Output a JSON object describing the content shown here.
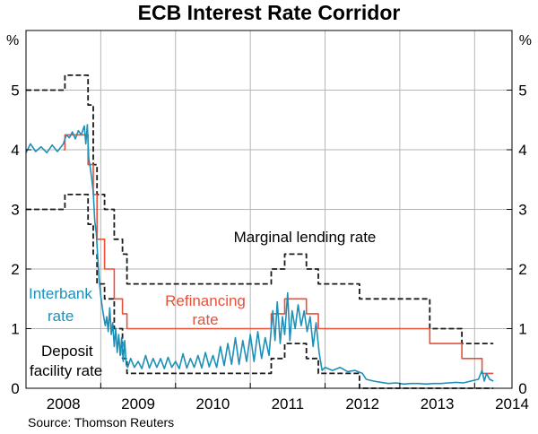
{
  "chart_data": {
    "type": "line",
    "title": "ECB Interest Rate Corridor",
    "y_unit_label": "%",
    "source": "Source: Thomson Reuters",
    "ylim": [
      0,
      6
    ],
    "yticks": [
      0,
      1,
      2,
      3,
      4,
      5
    ],
    "xlim": [
      2007.5,
      2014.0
    ],
    "xticks": [
      {
        "label": "2008",
        "pos": 2008.0
      },
      {
        "label": "2009",
        "pos": 2009.0
      },
      {
        "label": "2010",
        "pos": 2010.0
      },
      {
        "label": "2011",
        "pos": 2011.0
      },
      {
        "label": "2012",
        "pos": 2012.0
      },
      {
        "label": "2013",
        "pos": 2013.0
      },
      {
        "label": "2014",
        "pos": 2014.0
      }
    ],
    "year_boundaries": [
      2008.5,
      2009.5,
      2010.5,
      2011.5,
      2012.5,
      2013.5
    ],
    "grid": true,
    "annotations": {
      "marginal": "Marginal lending rate",
      "refi_line1": "Refinancing",
      "refi_line2": "rate",
      "interbank_line1": "Interbank",
      "interbank_line2": "rate",
      "deposit_line1": "Deposit",
      "deposit_line2": "facility rate"
    },
    "series": [
      {
        "key": "marginal",
        "style": "dashed",
        "color": "#1a1a1a",
        "points": [
          [
            2007.5,
            5.0
          ],
          [
            2008.02,
            5.0
          ],
          [
            2008.02,
            5.25
          ],
          [
            2008.33,
            5.25
          ],
          [
            2008.33,
            4.75
          ],
          [
            2008.4,
            4.75
          ],
          [
            2008.4,
            3.75
          ],
          [
            2008.45,
            3.75
          ],
          [
            2008.45,
            3.25
          ],
          [
            2008.55,
            3.25
          ],
          [
            2008.55,
            3.0
          ],
          [
            2008.68,
            3.0
          ],
          [
            2008.68,
            2.5
          ],
          [
            2008.79,
            2.5
          ],
          [
            2008.79,
            2.25
          ],
          [
            2008.85,
            2.25
          ],
          [
            2008.85,
            1.75
          ],
          [
            2010.78,
            1.75
          ],
          [
            2010.78,
            2.0
          ],
          [
            2010.96,
            2.0
          ],
          [
            2010.96,
            2.25
          ],
          [
            2011.25,
            2.25
          ],
          [
            2011.25,
            2.0
          ],
          [
            2011.41,
            2.0
          ],
          [
            2011.41,
            1.75
          ],
          [
            2011.96,
            1.75
          ],
          [
            2011.96,
            1.5
          ],
          [
            2012.9,
            1.5
          ],
          [
            2012.9,
            1.0
          ],
          [
            2013.33,
            1.0
          ],
          [
            2013.33,
            0.75
          ],
          [
            2013.75,
            0.75
          ]
        ]
      },
      {
        "key": "deposit",
        "style": "dashed",
        "color": "#1a1a1a",
        "points": [
          [
            2007.5,
            3.0
          ],
          [
            2008.02,
            3.0
          ],
          [
            2008.02,
            3.25
          ],
          [
            2008.33,
            3.25
          ],
          [
            2008.33,
            2.75
          ],
          [
            2008.4,
            2.75
          ],
          [
            2008.4,
            2.25
          ],
          [
            2008.45,
            2.25
          ],
          [
            2008.45,
            1.75
          ],
          [
            2008.55,
            1.75
          ],
          [
            2008.55,
            1.5
          ],
          [
            2008.68,
            1.5
          ],
          [
            2008.68,
            1.0
          ],
          [
            2008.79,
            1.0
          ],
          [
            2008.79,
            0.5
          ],
          [
            2008.85,
            0.5
          ],
          [
            2008.85,
            0.25
          ],
          [
            2010.78,
            0.25
          ],
          [
            2010.78,
            0.5
          ],
          [
            2010.96,
            0.5
          ],
          [
            2010.96,
            0.75
          ],
          [
            2011.25,
            0.75
          ],
          [
            2011.25,
            0.5
          ],
          [
            2011.41,
            0.5
          ],
          [
            2011.41,
            0.25
          ],
          [
            2011.96,
            0.25
          ],
          [
            2011.96,
            0.0
          ],
          [
            2013.75,
            0.0
          ]
        ]
      },
      {
        "key": "refi",
        "style": "solid",
        "color": "#e8503a",
        "points": [
          [
            2008.0,
            4.0
          ],
          [
            2008.02,
            4.0
          ],
          [
            2008.02,
            4.25
          ],
          [
            2008.33,
            4.25
          ],
          [
            2008.33,
            3.75
          ],
          [
            2008.4,
            3.75
          ],
          [
            2008.4,
            3.25
          ],
          [
            2008.45,
            3.25
          ],
          [
            2008.45,
            2.5
          ],
          [
            2008.55,
            2.5
          ],
          [
            2008.55,
            2.0
          ],
          [
            2008.68,
            2.0
          ],
          [
            2008.68,
            1.5
          ],
          [
            2008.79,
            1.5
          ],
          [
            2008.79,
            1.25
          ],
          [
            2008.85,
            1.25
          ],
          [
            2008.85,
            1.0
          ],
          [
            2010.78,
            1.0
          ],
          [
            2010.78,
            1.25
          ],
          [
            2010.96,
            1.25
          ],
          [
            2010.96,
            1.5
          ],
          [
            2011.25,
            1.5
          ],
          [
            2011.25,
            1.25
          ],
          [
            2011.41,
            1.25
          ],
          [
            2011.41,
            1.0
          ],
          [
            2012.9,
            1.0
          ],
          [
            2012.9,
            0.75
          ],
          [
            2013.33,
            0.75
          ],
          [
            2013.33,
            0.5
          ],
          [
            2013.6,
            0.5
          ],
          [
            2013.6,
            0.25
          ],
          [
            2013.75,
            0.25
          ]
        ]
      },
      {
        "key": "interbank",
        "style": "solid",
        "color": "#1e90b8",
        "points": [
          [
            2007.5,
            3.95
          ],
          [
            2007.56,
            4.1
          ],
          [
            2007.63,
            3.97
          ],
          [
            2007.7,
            4.05
          ],
          [
            2007.78,
            3.95
          ],
          [
            2007.85,
            4.08
          ],
          [
            2007.92,
            3.97
          ],
          [
            2008.0,
            4.1
          ],
          [
            2008.04,
            4.25
          ],
          [
            2008.08,
            4.2
          ],
          [
            2008.12,
            4.3
          ],
          [
            2008.16,
            4.18
          ],
          [
            2008.2,
            4.32
          ],
          [
            2008.24,
            4.25
          ],
          [
            2008.28,
            4.4
          ],
          [
            2008.3,
            4.1
          ],
          [
            2008.32,
            4.42
          ],
          [
            2008.34,
            3.85
          ],
          [
            2008.36,
            3.7
          ],
          [
            2008.38,
            3.5
          ],
          [
            2008.4,
            3.3
          ],
          [
            2008.42,
            2.8
          ],
          [
            2008.44,
            2.6
          ],
          [
            2008.46,
            2.2
          ],
          [
            2008.48,
            1.8
          ],
          [
            2008.5,
            1.55
          ],
          [
            2008.52,
            1.35
          ],
          [
            2008.54,
            1.2
          ],
          [
            2008.56,
            1.05
          ],
          [
            2008.58,
            1.2
          ],
          [
            2008.6,
            0.95
          ],
          [
            2008.62,
            1.35
          ],
          [
            2008.64,
            0.9
          ],
          [
            2008.66,
            1.1
          ],
          [
            2008.68,
            0.7
          ],
          [
            2008.7,
            1.0
          ],
          [
            2008.72,
            0.6
          ],
          [
            2008.74,
            0.9
          ],
          [
            2008.76,
            0.55
          ],
          [
            2008.78,
            0.85
          ],
          [
            2008.8,
            0.45
          ],
          [
            2008.82,
            0.8
          ],
          [
            2008.84,
            0.4
          ],
          [
            2008.86,
            0.35
          ],
          [
            2008.9,
            0.5
          ],
          [
            2008.95,
            0.35
          ],
          [
            2009.0,
            0.45
          ],
          [
            2009.05,
            0.33
          ],
          [
            2009.1,
            0.55
          ],
          [
            2009.15,
            0.34
          ],
          [
            2009.2,
            0.5
          ],
          [
            2009.25,
            0.35
          ],
          [
            2009.3,
            0.5
          ],
          [
            2009.35,
            0.33
          ],
          [
            2009.4,
            0.52
          ],
          [
            2009.45,
            0.35
          ],
          [
            2009.5,
            0.45
          ],
          [
            2009.55,
            0.33
          ],
          [
            2009.6,
            0.58
          ],
          [
            2009.65,
            0.34
          ],
          [
            2009.7,
            0.5
          ],
          [
            2009.75,
            0.35
          ],
          [
            2009.8,
            0.55
          ],
          [
            2009.85,
            0.34
          ],
          [
            2009.9,
            0.6
          ],
          [
            2009.95,
            0.36
          ],
          [
            2010.0,
            0.55
          ],
          [
            2010.05,
            0.35
          ],
          [
            2010.1,
            0.7
          ],
          [
            2010.15,
            0.38
          ],
          [
            2010.2,
            0.75
          ],
          [
            2010.25,
            0.4
          ],
          [
            2010.3,
            0.85
          ],
          [
            2010.35,
            0.4
          ],
          [
            2010.4,
            0.8
          ],
          [
            2010.45,
            0.45
          ],
          [
            2010.5,
            0.9
          ],
          [
            2010.55,
            0.45
          ],
          [
            2010.6,
            0.95
          ],
          [
            2010.65,
            0.5
          ],
          [
            2010.7,
            0.85
          ],
          [
            2010.75,
            0.55
          ],
          [
            2010.8,
            1.3
          ],
          [
            2010.83,
            0.8
          ],
          [
            2010.86,
            1.45
          ],
          [
            2010.9,
            0.75
          ],
          [
            2010.93,
            1.2
          ],
          [
            2010.96,
            0.9
          ],
          [
            2011.0,
            1.6
          ],
          [
            2011.03,
            0.8
          ],
          [
            2011.06,
            1.3
          ],
          [
            2011.1,
            1.0
          ],
          [
            2011.14,
            1.4
          ],
          [
            2011.18,
            1.05
          ],
          [
            2011.22,
            1.3
          ],
          [
            2011.26,
            0.95
          ],
          [
            2011.3,
            1.2
          ],
          [
            2011.34,
            0.7
          ],
          [
            2011.38,
            1.1
          ],
          [
            2011.42,
            0.6
          ],
          [
            2011.46,
            0.3
          ],
          [
            2011.5,
            0.35
          ],
          [
            2011.6,
            0.3
          ],
          [
            2011.7,
            0.35
          ],
          [
            2011.8,
            0.28
          ],
          [
            2011.9,
            0.3
          ],
          [
            2012.0,
            0.25
          ],
          [
            2012.05,
            0.15
          ],
          [
            2012.15,
            0.12
          ],
          [
            2012.25,
            0.1
          ],
          [
            2012.35,
            0.08
          ],
          [
            2012.45,
            0.09
          ],
          [
            2012.55,
            0.07
          ],
          [
            2012.65,
            0.08
          ],
          [
            2012.75,
            0.08
          ],
          [
            2012.85,
            0.07
          ],
          [
            2012.95,
            0.08
          ],
          [
            2013.05,
            0.08
          ],
          [
            2013.15,
            0.09
          ],
          [
            2013.25,
            0.1
          ],
          [
            2013.35,
            0.09
          ],
          [
            2013.45,
            0.12
          ],
          [
            2013.55,
            0.15
          ],
          [
            2013.6,
            0.3
          ],
          [
            2013.63,
            0.12
          ],
          [
            2013.66,
            0.25
          ],
          [
            2013.7,
            0.15
          ],
          [
            2013.75,
            0.12
          ]
        ]
      }
    ]
  }
}
